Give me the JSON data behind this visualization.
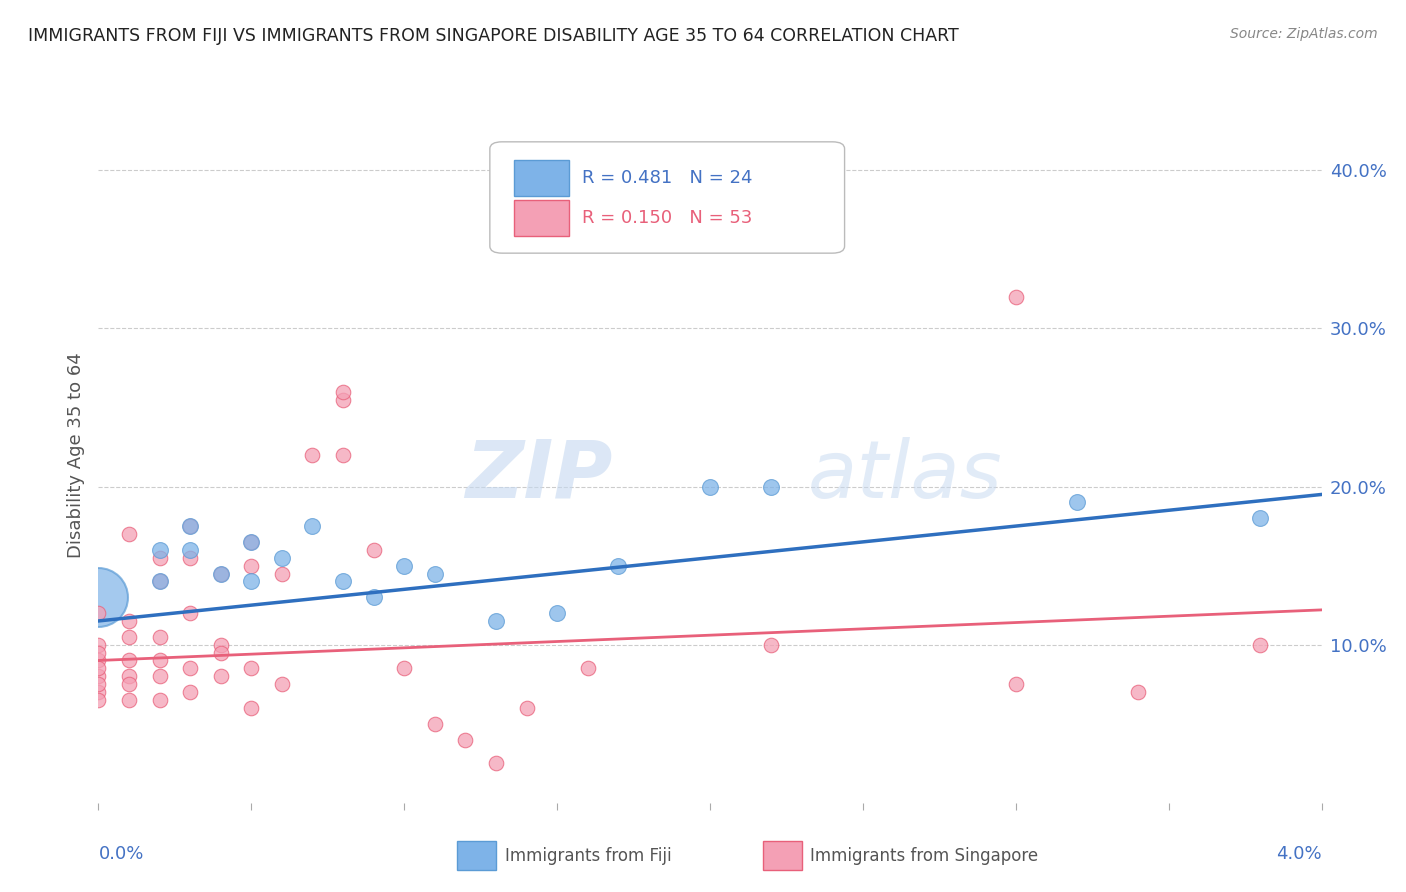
{
  "title": "IMMIGRANTS FROM FIJI VS IMMIGRANTS FROM SINGAPORE DISABILITY AGE 35 TO 64 CORRELATION CHART",
  "source": "Source: ZipAtlas.com",
  "xlabel_bottom_left": "0.0%",
  "xlabel_bottom_right": "4.0%",
  "ylabel": "Disability Age 35 to 64",
  "y_tick_labels": [
    "10.0%",
    "20.0%",
    "30.0%",
    "40.0%"
  ],
  "y_tick_values": [
    0.1,
    0.2,
    0.3,
    0.4
  ],
  "xlim": [
    0.0,
    0.04
  ],
  "ylim": [
    0.0,
    0.44
  ],
  "fiji_color": "#7EB3E8",
  "singapore_color": "#F4A0B5",
  "fiji_edge_color": "#5B9BD5",
  "singapore_edge_color": "#E8607A",
  "legend_R_fiji": "R = 0.481",
  "legend_N_fiji": "N = 24",
  "legend_R_singapore": "R = 0.150",
  "legend_N_singapore": "N = 53",
  "regression_fiji": {
    "slope": 2.0,
    "intercept": 0.115
  },
  "regression_singapore": {
    "slope": 0.8,
    "intercept": 0.09
  },
  "fiji_points": [
    [
      0.0,
      0.135
    ],
    [
      0.0,
      0.125
    ],
    [
      0.0,
      0.12
    ],
    [
      0.0,
      0.13
    ],
    [
      0.002,
      0.16
    ],
    [
      0.002,
      0.14
    ],
    [
      0.003,
      0.175
    ],
    [
      0.003,
      0.16
    ],
    [
      0.004,
      0.145
    ],
    [
      0.005,
      0.165
    ],
    [
      0.005,
      0.14
    ],
    [
      0.006,
      0.155
    ],
    [
      0.007,
      0.175
    ],
    [
      0.008,
      0.14
    ],
    [
      0.009,
      0.13
    ],
    [
      0.01,
      0.15
    ],
    [
      0.011,
      0.145
    ],
    [
      0.013,
      0.115
    ],
    [
      0.015,
      0.12
    ],
    [
      0.017,
      0.15
    ],
    [
      0.02,
      0.2
    ],
    [
      0.022,
      0.2
    ],
    [
      0.032,
      0.19
    ],
    [
      0.038,
      0.18
    ]
  ],
  "singapore_points": [
    [
      0.0,
      0.12
    ],
    [
      0.0,
      0.1
    ],
    [
      0.0,
      0.09
    ],
    [
      0.0,
      0.08
    ],
    [
      0.0,
      0.07
    ],
    [
      0.0,
      0.075
    ],
    [
      0.0,
      0.065
    ],
    [
      0.0,
      0.085
    ],
    [
      0.0,
      0.095
    ],
    [
      0.001,
      0.115
    ],
    [
      0.001,
      0.105
    ],
    [
      0.001,
      0.09
    ],
    [
      0.001,
      0.08
    ],
    [
      0.001,
      0.075
    ],
    [
      0.001,
      0.17
    ],
    [
      0.001,
      0.065
    ],
    [
      0.002,
      0.155
    ],
    [
      0.002,
      0.14
    ],
    [
      0.002,
      0.105
    ],
    [
      0.002,
      0.09
    ],
    [
      0.002,
      0.08
    ],
    [
      0.002,
      0.065
    ],
    [
      0.003,
      0.175
    ],
    [
      0.003,
      0.155
    ],
    [
      0.003,
      0.12
    ],
    [
      0.003,
      0.085
    ],
    [
      0.003,
      0.07
    ],
    [
      0.004,
      0.145
    ],
    [
      0.004,
      0.1
    ],
    [
      0.004,
      0.095
    ],
    [
      0.004,
      0.08
    ],
    [
      0.005,
      0.165
    ],
    [
      0.005,
      0.15
    ],
    [
      0.005,
      0.085
    ],
    [
      0.005,
      0.06
    ],
    [
      0.006,
      0.145
    ],
    [
      0.006,
      0.075
    ],
    [
      0.007,
      0.22
    ],
    [
      0.008,
      0.255
    ],
    [
      0.008,
      0.26
    ],
    [
      0.008,
      0.22
    ],
    [
      0.009,
      0.16
    ],
    [
      0.01,
      0.085
    ],
    [
      0.011,
      0.05
    ],
    [
      0.012,
      0.04
    ],
    [
      0.013,
      0.025
    ],
    [
      0.014,
      0.06
    ],
    [
      0.016,
      0.085
    ],
    [
      0.022,
      0.1
    ],
    [
      0.03,
      0.075
    ],
    [
      0.03,
      0.32
    ],
    [
      0.034,
      0.07
    ],
    [
      0.038,
      0.1
    ]
  ],
  "fiji_size": 130,
  "singapore_size": 110,
  "big_bubble_size": 1800,
  "watermark_zip": "ZIP",
  "watermark_atlas": "atlas",
  "bg_color": "#FFFFFF",
  "title_color": "#222222",
  "axis_label_color": "#4472C4",
  "grid_color": "#CCCCCC",
  "line_blue": "#2E6FBF",
  "line_pink": "#E8607A"
}
